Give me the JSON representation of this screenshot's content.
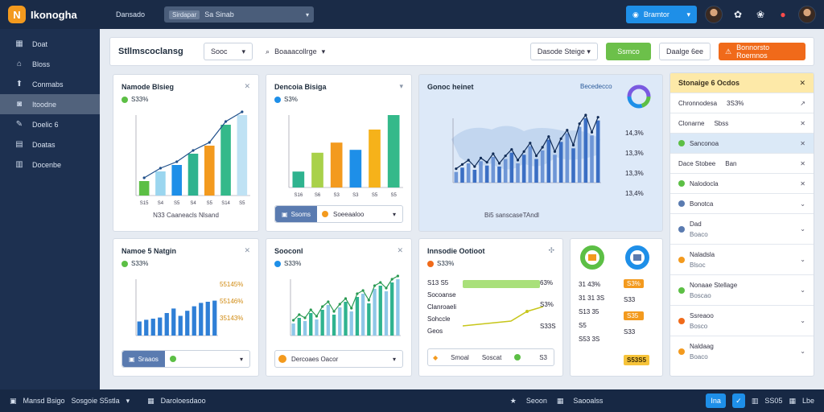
{
  "app": {
    "logo_letter": "N",
    "name": "Ikonogha"
  },
  "topbar": {
    "link": "Dansado",
    "search_tag": "Sirdapar",
    "search_text": "Sa Sinab",
    "primary_button": "Bramtor",
    "notification_badge_color": "#ff4b4b"
  },
  "sidebar": {
    "items": [
      {
        "label": "Doat",
        "icon": "grid-icon"
      },
      {
        "label": "Bloss",
        "icon": "home-icon"
      },
      {
        "label": "Conmabs",
        "icon": "up-arrow-icon"
      },
      {
        "label": "Itoodne",
        "icon": "user-icon",
        "active": true
      },
      {
        "label": "Doelic 6",
        "icon": "pencil-icon"
      },
      {
        "label": "Doatas",
        "icon": "list-icon"
      },
      {
        "label": "Docenbe",
        "icon": "table-icon"
      }
    ]
  },
  "toolbar": {
    "title": "Stllmscoclansg",
    "select_label": "Sooc",
    "search_label": "Boaaacollrge",
    "range_label": "Dasode Steige",
    "green_button": "Ssmco",
    "outline_button": "Daalge 6ee",
    "orange_button": "Bonnorsto Roemnos"
  },
  "cards": {
    "c1": {
      "title": "Namode Blsieg",
      "sub": "S33%",
      "footer": "N33 Caaneacls Nlsand"
    },
    "c2": {
      "title": "Dencoia Bisiga",
      "sub": "S3%",
      "footer_pill": "Ssoms",
      "footer_text": "Soeeaaloo"
    },
    "c3": {
      "title": "Gonoc heinet",
      "legend": "Becedecco",
      "values": [
        "14,3%",
        "13,3%",
        "13,3%",
        "13,4%"
      ],
      "footer": "Bi5 sanscaseTAndl"
    },
    "c4": {
      "title": "Namoe 5 Natgin",
      "sub": "S33%",
      "values": [
        "55145%",
        "55146%",
        "35143%"
      ],
      "footer_pill": "Sraaos"
    },
    "c5": {
      "title": "Sooconl",
      "sub": "S33%",
      "footer": "Dercoaes Oacor"
    },
    "c6": {
      "title": "Innsodie Ootioot",
      "sub": "S33%",
      "rows": [
        "S13 S5",
        "Socoanse",
        "Clanroaeli",
        "Sohccle",
        "Geos"
      ],
      "values": [
        "63%",
        "S3%",
        "S33S"
      ],
      "footer_a": "Smoal",
      "footer_b": "Soscat",
      "footer_val": "S3"
    },
    "c7": {
      "badges": [
        "S3%",
        "S33",
        "S35",
        "S33"
      ],
      "rows": [
        "31 43%",
        "31 31 3S",
        "S13 35",
        "S5",
        "S53 3S"
      ],
      "total": "S53S5"
    }
  },
  "panel": {
    "title": "Stonaige 6 Ocdos",
    "rows": [
      {
        "label": "Chronnodesa",
        "value": "3S3%",
        "icon": "cursor-icon"
      },
      {
        "label": "Clonarne",
        "value": "Sbss",
        "icon": "close-icon"
      },
      {
        "label": "Sanconoa",
        "dot": "#5cbf45",
        "highlight": true,
        "icon": "close-icon"
      },
      {
        "label": "Dace Stobee",
        "value": "Ban",
        "icon": "close-icon"
      },
      {
        "label": "Nalodocla",
        "dot": "#5cbf45",
        "icon": "close-icon"
      },
      {
        "label": "Bonotca",
        "dot": "#5a7bb0",
        "icon": "chevron-down-icon"
      },
      {
        "label": "Dad",
        "sub": "Boaco",
        "dot": "#5a7bb0",
        "icon": "chevron-down-icon"
      },
      {
        "label": "Naladsla",
        "sub": "Blsoc",
        "dot": "#f39a1e",
        "icon": "chevron-down-icon"
      },
      {
        "label": "Nonaae Stellage",
        "sub": "Boscao",
        "dot": "#5cbf45",
        "icon": "chevron-down-icon"
      },
      {
        "label": "Ssreaoo",
        "sub": "Bosco",
        "dot": "#f06a1a",
        "icon": "chevron-down-icon"
      },
      {
        "label": "Naldaag",
        "sub": "Boaco",
        "dot": "#f39a1e",
        "icon": "chevron-down-icon"
      }
    ]
  },
  "statusbar": {
    "left_a": "Mansd Bsigo",
    "left_b": "Sosgoie S5stla",
    "left_c": "Daroloesdaoo",
    "center_a": "Seoon",
    "center_b": "Saooalss",
    "right_btn": "Ina",
    "right_a": "SS05",
    "right_b": "Lbe"
  },
  "colors": {
    "accent_blue": "#1e8fe8",
    "accent_green": "#6cc04a",
    "accent_orange": "#f06a1a"
  },
  "chart_data": [
    {
      "type": "bar",
      "title": "Namode Blsieg",
      "categories": [
        "S15",
        "S4",
        "S5",
        "S4",
        "S5",
        "S14",
        "S5"
      ],
      "values": [
        18,
        30,
        38,
        52,
        62,
        88,
        100
      ],
      "ylim": [
        0,
        100
      ]
    },
    {
      "type": "bar",
      "title": "Dencoia Bisiga",
      "categories": [
        "S16",
        "S6",
        "S3",
        "S3",
        "S5",
        "S5"
      ],
      "values": [
        22,
        48,
        62,
        52,
        80,
        100
      ],
      "ylim": [
        0,
        100
      ]
    },
    {
      "type": "bar",
      "title": "Namoe 5 Natgin",
      "values": [
        25,
        28,
        30,
        32,
        40,
        48,
        35,
        44,
        52,
        58,
        60,
        62
      ],
      "ylim": [
        0,
        100
      ]
    },
    {
      "type": "bar",
      "title": "Sooconl",
      "values": [
        15,
        22,
        18,
        28,
        20,
        32,
        38,
        26,
        35,
        42,
        30,
        48,
        52,
        40,
        58,
        62,
        55,
        66,
        70
      ]
    },
    {
      "type": "bar",
      "title": "Gonoc heinet",
      "values": [
        10,
        14,
        18,
        12,
        20,
        16,
        24,
        15,
        22,
        28,
        18,
        26,
        34,
        22,
        30,
        40,
        26,
        38,
        46,
        32,
        52,
        60,
        44,
        58
      ]
    }
  ]
}
